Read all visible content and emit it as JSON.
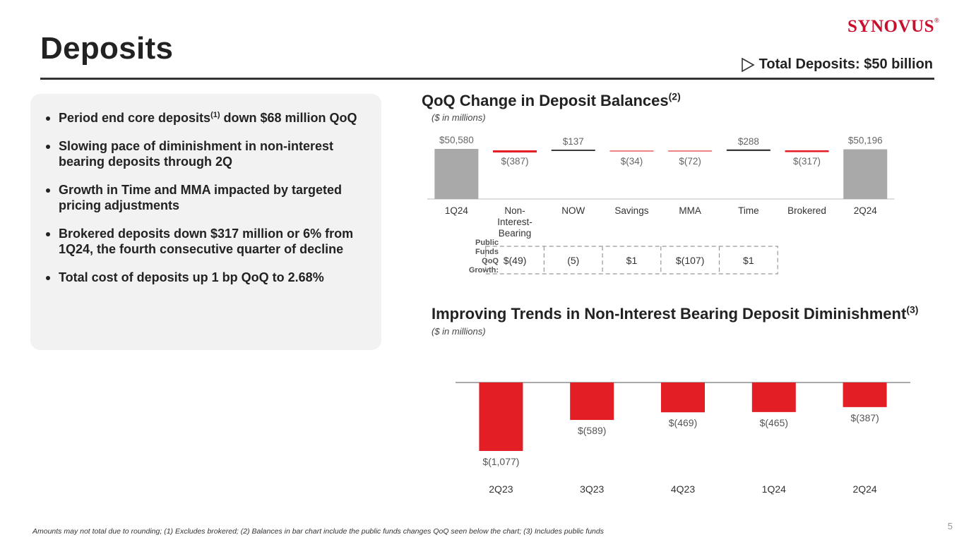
{
  "page": {
    "title": "Deposits",
    "logo": "SYNOVUS",
    "logo_mark": "®",
    "total_deposits": "Total Deposits: $50 billion",
    "page_number": "5",
    "footnote": "Amounts may not total due to rounding; (1) Excludes brokered; (2) Balances in bar chart include the public funds changes QoQ seen below the chart; (3) Includes public funds"
  },
  "bullets": [
    {
      "pre": "Period end core deposits",
      "sup": "(1)",
      "post": " down $68 million QoQ"
    },
    {
      "pre": "Slowing pace of diminishment in non-interest bearing deposits through 2Q",
      "sup": "",
      "post": ""
    },
    {
      "pre": "Growth in Time and MMA impacted by targeted pricing adjustments",
      "sup": "",
      "post": ""
    },
    {
      "pre": "Brokered deposits down $317 million or 6% from 1Q24, the fourth consecutive quarter of decline",
      "sup": "",
      "post": ""
    },
    {
      "pre": "Total cost of deposits up 1 bp QoQ to 2.68%",
      "sup": "",
      "post": ""
    }
  ],
  "colors": {
    "negative": "#e31e24",
    "total": "#a9a9a9",
    "positive": "#3a3a3a",
    "axis": "#555555"
  },
  "chart_data": [
    {
      "type": "bar",
      "subtype": "waterfall",
      "title": "QoQ Change in Deposit Balances",
      "title_sup": "(2)",
      "subtitle": "($ in millions)",
      "categories": [
        "1Q24",
        "Non-Interest-Bearing",
        "NOW",
        "Savings",
        "MMA",
        "Time",
        "Brokered",
        "2Q24"
      ],
      "category_lines": [
        [
          "1Q24"
        ],
        [
          "Non-",
          "Interest-",
          "Bearing"
        ],
        [
          "NOW"
        ],
        [
          "Savings"
        ],
        [
          "MMA"
        ],
        [
          "Time"
        ],
        [
          "Brokered"
        ],
        [
          "2Q24"
        ]
      ],
      "values": [
        50580,
        -387,
        137,
        -34,
        -72,
        288,
        -317,
        50196
      ],
      "kinds": [
        "total",
        "delta",
        "delta",
        "delta",
        "delta",
        "delta",
        "delta",
        "total"
      ],
      "labels": [
        "$50,580",
        "$(387)",
        "$137",
        "$(34)",
        "$(72)",
        "$288",
        "$(317)",
        "$50,196"
      ],
      "public_funds": {
        "label_lines": [
          "Public",
          "Funds",
          "QoQ",
          "Growth:"
        ],
        "values": [
          -49,
          -5,
          1,
          -107,
          1
        ],
        "labels": [
          "$(49)",
          "(5)",
          "$1",
          "$(107)",
          "$1"
        ]
      }
    },
    {
      "type": "bar",
      "title": "Improving Trends in Non-Interest Bearing Deposit Diminishment",
      "title_sup": "(3)",
      "subtitle": "($ in millions)",
      "categories": [
        "2Q23",
        "3Q23",
        "4Q23",
        "1Q24",
        "2Q24"
      ],
      "values": [
        -1077,
        -589,
        -469,
        -465,
        -387
      ],
      "labels": [
        "$(1,077)",
        "$(589)",
        "$(469)",
        "$(465)",
        "$(387)"
      ],
      "ylim": [
        -1077,
        0
      ]
    }
  ]
}
